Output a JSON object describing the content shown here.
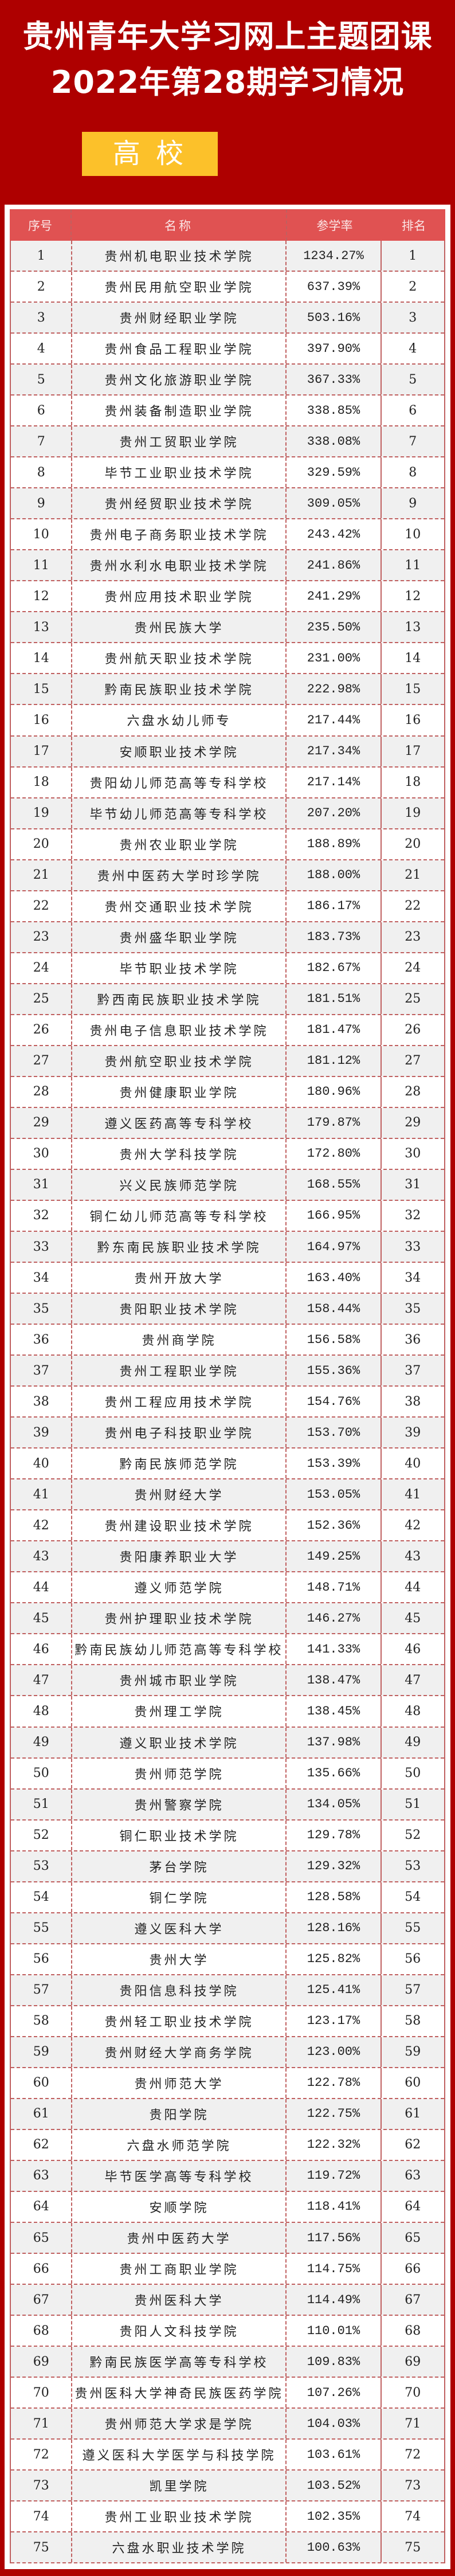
{
  "header": {
    "title_line1": "贵州青年大学习网上主题团课",
    "title_line2": "2022年第28期学习情况",
    "category": "高 校"
  },
  "colors": {
    "background": "#ae0000",
    "badge": "#fcc12a",
    "table_header": "#e05252",
    "border": "#c06060"
  },
  "table": {
    "columns": [
      "序号",
      "名称",
      "参学率",
      "排名"
    ],
    "rows": [
      [
        "1",
        "贵州机电职业技术学院",
        "1234.27%",
        "1"
      ],
      [
        "2",
        "贵州民用航空职业学院",
        "637.39%",
        "2"
      ],
      [
        "3",
        "贵州财经职业学院",
        "503.16%",
        "3"
      ],
      [
        "4",
        "贵州食品工程职业学院",
        "397.90%",
        "4"
      ],
      [
        "5",
        "贵州文化旅游职业学院",
        "367.33%",
        "5"
      ],
      [
        "6",
        "贵州装备制造职业学院",
        "338.85%",
        "6"
      ],
      [
        "7",
        "贵州工贸职业学院",
        "338.08%",
        "7"
      ],
      [
        "8",
        "毕节工业职业技术学院",
        "329.59%",
        "8"
      ],
      [
        "9",
        "贵州经贸职业技术学院",
        "309.05%",
        "9"
      ],
      [
        "10",
        "贵州电子商务职业技术学院",
        "243.42%",
        "10"
      ],
      [
        "11",
        "贵州水利水电职业技术学院",
        "241.86%",
        "11"
      ],
      [
        "12",
        "贵州应用技术职业学院",
        "241.29%",
        "12"
      ],
      [
        "13",
        "贵州民族大学",
        "235.50%",
        "13"
      ],
      [
        "14",
        "贵州航天职业技术学院",
        "231.00%",
        "14"
      ],
      [
        "15",
        "黔南民族职业技术学院",
        "222.98%",
        "15"
      ],
      [
        "16",
        "六盘水幼儿师专",
        "217.44%",
        "16"
      ],
      [
        "17",
        "安顺职业技术学院",
        "217.34%",
        "17"
      ],
      [
        "18",
        "贵阳幼儿师范高等专科学校",
        "217.14%",
        "18"
      ],
      [
        "19",
        "毕节幼儿师范高等专科学校",
        "207.20%",
        "19"
      ],
      [
        "20",
        "贵州农业职业学院",
        "188.89%",
        "20"
      ],
      [
        "21",
        "贵州中医药大学时珍学院",
        "188.00%",
        "21"
      ],
      [
        "22",
        "贵州交通职业技术学院",
        "186.17%",
        "22"
      ],
      [
        "23",
        "贵州盛华职业学院",
        "183.73%",
        "23"
      ],
      [
        "24",
        "毕节职业技术学院",
        "182.67%",
        "24"
      ],
      [
        "25",
        "黔西南民族职业技术学院",
        "181.51%",
        "25"
      ],
      [
        "26",
        "贵州电子信息职业技术学院",
        "181.47%",
        "26"
      ],
      [
        "27",
        "贵州航空职业技术学院",
        "181.12%",
        "27"
      ],
      [
        "28",
        "贵州健康职业学院",
        "180.96%",
        "28"
      ],
      [
        "29",
        "遵义医药高等专科学校",
        "179.87%",
        "29"
      ],
      [
        "30",
        "贵州大学科技学院",
        "172.80%",
        "30"
      ],
      [
        "31",
        "兴义民族师范学院",
        "168.55%",
        "31"
      ],
      [
        "32",
        "铜仁幼儿师范高等专科学校",
        "166.95%",
        "32"
      ],
      [
        "33",
        "黔东南民族职业技术学院",
        "164.97%",
        "33"
      ],
      [
        "34",
        "贵州开放大学",
        "163.40%",
        "34"
      ],
      [
        "35",
        "贵阳职业技术学院",
        "158.44%",
        "35"
      ],
      [
        "36",
        "贵州商学院",
        "156.58%",
        "36"
      ],
      [
        "37",
        "贵州工程职业学院",
        "155.36%",
        "37"
      ],
      [
        "38",
        "贵州工程应用技术学院",
        "154.76%",
        "38"
      ],
      [
        "39",
        "贵州电子科技职业学院",
        "153.70%",
        "39"
      ],
      [
        "40",
        "黔南民族师范学院",
        "153.39%",
        "40"
      ],
      [
        "41",
        "贵州财经大学",
        "153.05%",
        "41"
      ],
      [
        "42",
        "贵州建设职业技术学院",
        "152.36%",
        "42"
      ],
      [
        "43",
        "贵阳康养职业大学",
        "149.25%",
        "43"
      ],
      [
        "44",
        "遵义师范学院",
        "148.71%",
        "44"
      ],
      [
        "45",
        "贵州护理职业技术学院",
        "146.27%",
        "45"
      ],
      [
        "46",
        "黔南民族幼儿师范高等专科学校",
        "141.33%",
        "46"
      ],
      [
        "47",
        "贵州城市职业学院",
        "138.47%",
        "47"
      ],
      [
        "48",
        "贵州理工学院",
        "138.45%",
        "48"
      ],
      [
        "49",
        "遵义职业技术学院",
        "137.98%",
        "49"
      ],
      [
        "50",
        "贵州师范学院",
        "135.66%",
        "50"
      ],
      [
        "51",
        "贵州警察学院",
        "134.05%",
        "51"
      ],
      [
        "52",
        "铜仁职业技术学院",
        "129.78%",
        "52"
      ],
      [
        "53",
        "茅台学院",
        "129.32%",
        "53"
      ],
      [
        "54",
        "铜仁学院",
        "128.58%",
        "54"
      ],
      [
        "55",
        "遵义医科大学",
        "128.16%",
        "55"
      ],
      [
        "56",
        "贵州大学",
        "125.82%",
        "56"
      ],
      [
        "57",
        "贵阳信息科技学院",
        "125.41%",
        "57"
      ],
      [
        "58",
        "贵州轻工职业技术学院",
        "123.17%",
        "58"
      ],
      [
        "59",
        "贵州财经大学商务学院",
        "123.00%",
        "59"
      ],
      [
        "60",
        "贵州师范大学",
        "122.78%",
        "60"
      ],
      [
        "61",
        "贵阳学院",
        "122.75%",
        "61"
      ],
      [
        "62",
        "六盘水师范学院",
        "122.32%",
        "62"
      ],
      [
        "63",
        "毕节医学高等专科学校",
        "119.72%",
        "63"
      ],
      [
        "64",
        "安顺学院",
        "118.41%",
        "64"
      ],
      [
        "65",
        "贵州中医药大学",
        "117.56%",
        "65"
      ],
      [
        "66",
        "贵州工商职业学院",
        "114.75%",
        "66"
      ],
      [
        "67",
        "贵州医科大学",
        "114.49%",
        "67"
      ],
      [
        "68",
        "贵阳人文科技学院",
        "110.01%",
        "68"
      ],
      [
        "69",
        "黔南民族医学高等专科学校",
        "109.83%",
        "69"
      ],
      [
        "70",
        "贵州医科大学神奇民族医药学院",
        "107.26%",
        "70"
      ],
      [
        "71",
        "贵州师范大学求是学院",
        "104.03%",
        "71"
      ],
      [
        "72",
        "遵义医科大学医学与科技学院",
        "103.61%",
        "72"
      ],
      [
        "73",
        "凯里学院",
        "103.52%",
        "73"
      ],
      [
        "74",
        "贵州工业职业技术学院",
        "102.35%",
        "74"
      ],
      [
        "75",
        "六盘水职业技术学院",
        "100.63%",
        "75"
      ]
    ]
  }
}
